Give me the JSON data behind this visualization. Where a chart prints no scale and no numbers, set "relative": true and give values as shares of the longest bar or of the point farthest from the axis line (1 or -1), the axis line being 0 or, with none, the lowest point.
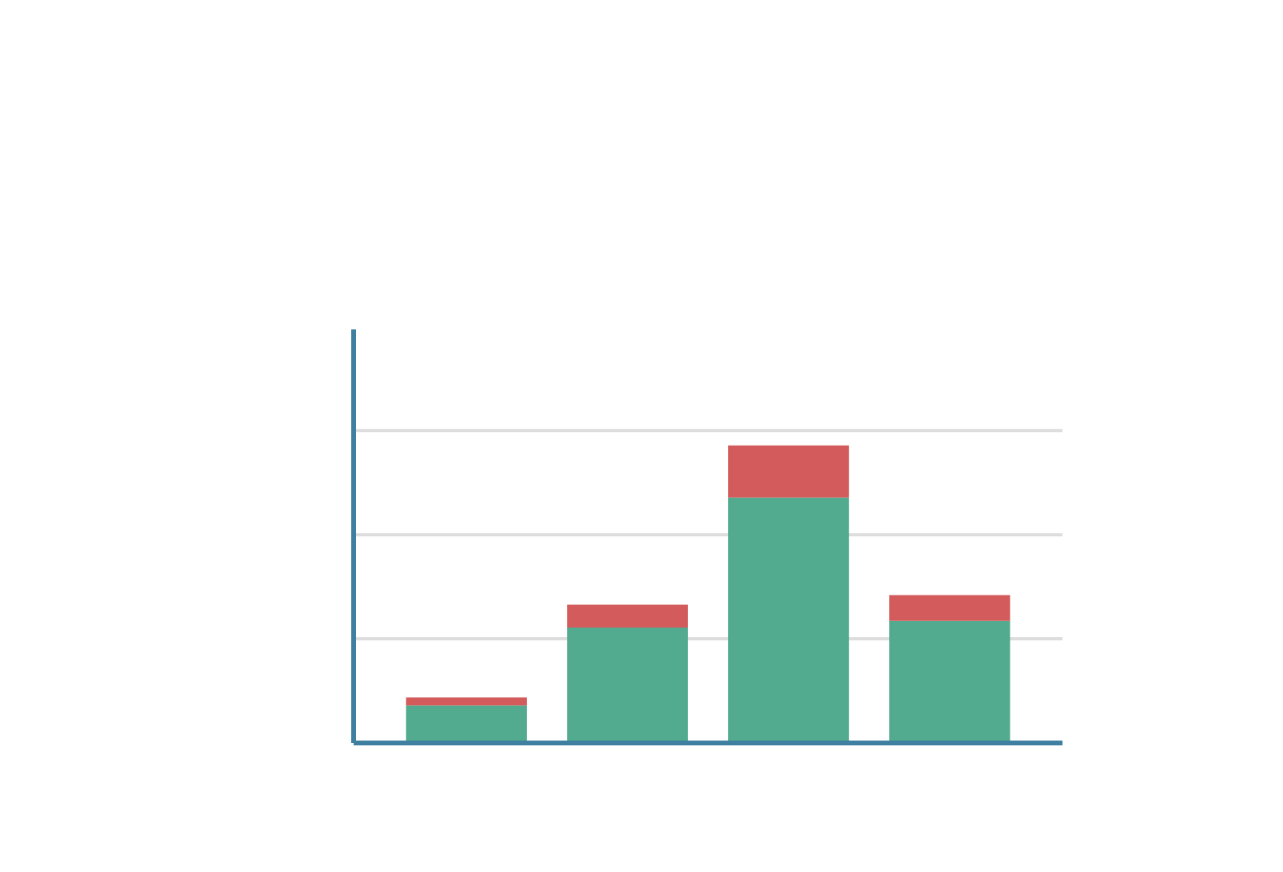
{
  "chart_data": {
    "type": "bar",
    "stacked": true,
    "relative": true,
    "categories": [
      null,
      null,
      null,
      null
    ],
    "ref_lines": [
      {
        "axis": "y",
        "value": 0.35,
        "color": "#dddddd"
      },
      {
        "axis": "y",
        "value": 0.7,
        "color": "#dddddd"
      },
      {
        "axis": "y",
        "value": 1.05,
        "color": "#dddddd"
      }
    ],
    "series": [
      {
        "color": "#52ab8e",
        "values": [
          0.126,
          0.388,
          0.825,
          0.41
        ]
      },
      {
        "color": "#d45b5b",
        "values": [
          0.027,
          0.077,
          0.175,
          0.087
        ]
      }
    ]
  }
}
